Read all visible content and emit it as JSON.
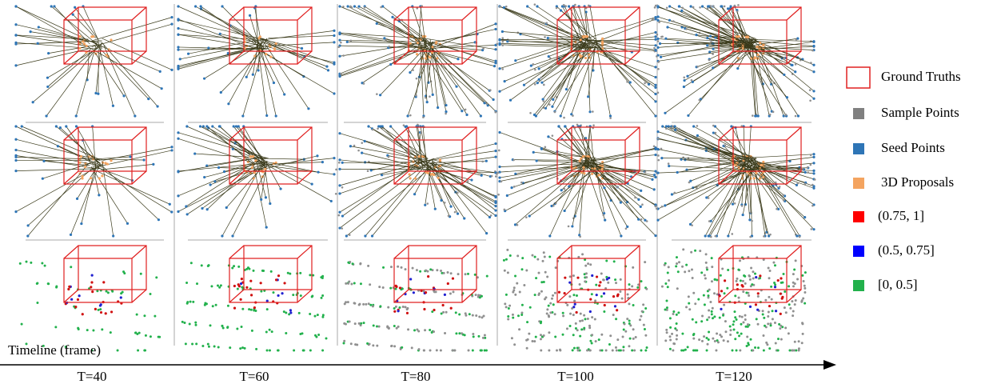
{
  "legend": [
    {
      "label": "Ground Truths"
    },
    {
      "label": "Sample Points"
    },
    {
      "label": "Seed Points"
    },
    {
      "label": "3D Proposals"
    },
    {
      "label": "(0.75, 1]"
    },
    {
      "label": "(0.5, 0.75]"
    },
    {
      "label": "[0, 0.5]"
    }
  ],
  "timeline": {
    "label": "Timeline (frame)",
    "ticks": [
      "T=40",
      "T=60",
      "T=80",
      "T=100",
      "T=120"
    ]
  }
}
